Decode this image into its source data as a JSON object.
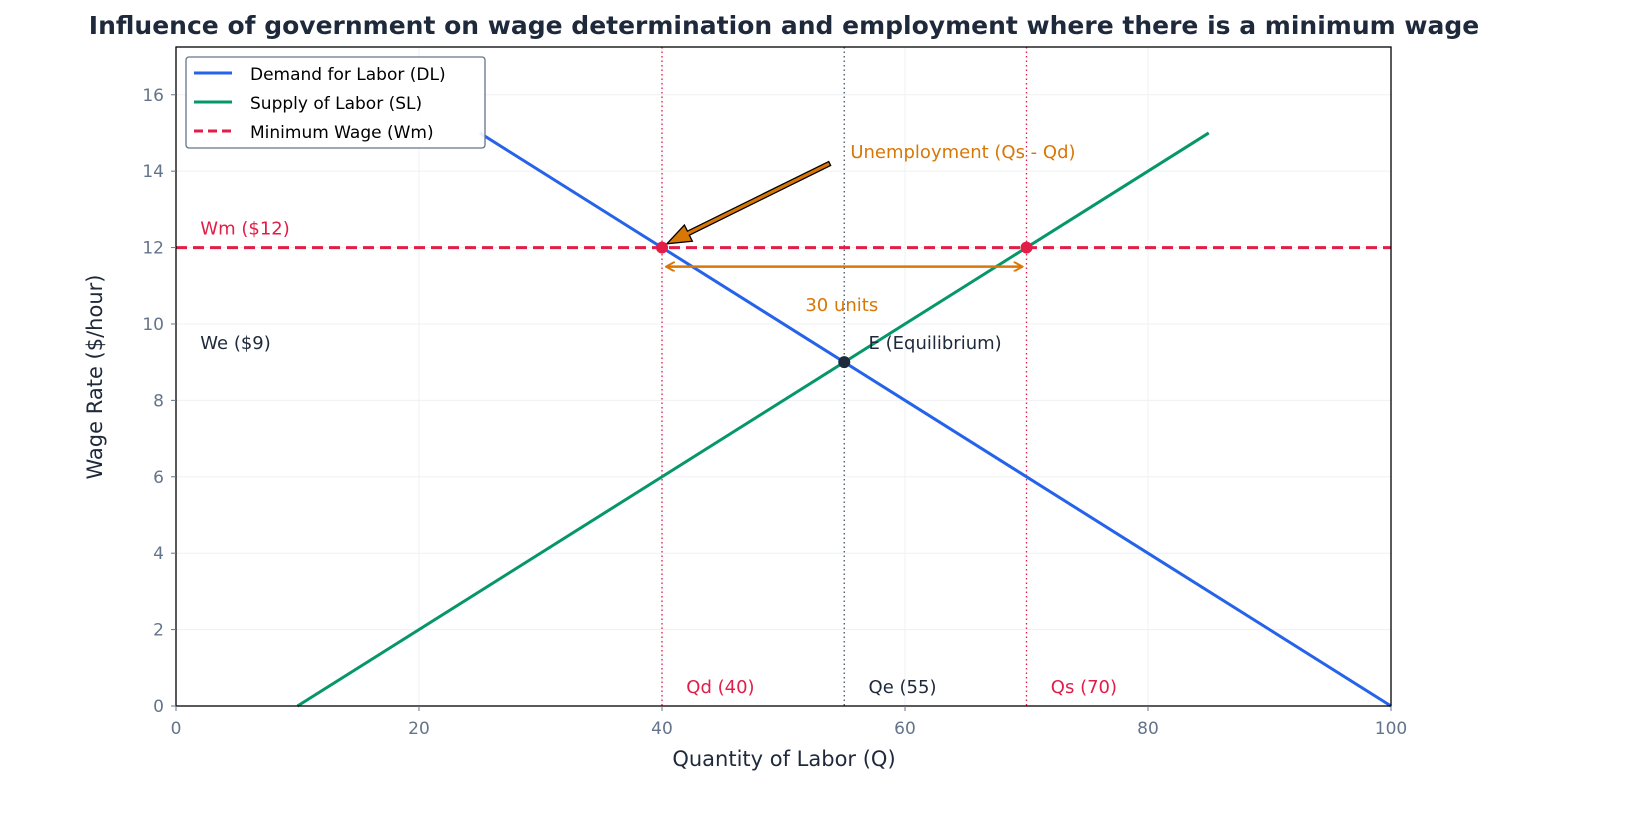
{
  "chart_data": {
    "type": "line",
    "title": "Influence of government on wage determination and employment where there is a minimum wage",
    "xlabel": "Quantity of Labor (Q)",
    "ylabel": "Wage Rate ($/hour)",
    "xlim": [
      0,
      100
    ],
    "ylim": [
      0,
      17.25
    ],
    "xticks": [
      0,
      20,
      40,
      60,
      80,
      100
    ],
    "yticks": [
      0,
      2,
      4,
      6,
      8,
      10,
      12,
      14,
      16
    ],
    "grid": true,
    "legend_position": "top-left",
    "series": [
      {
        "name": "Demand for Labor (DL)",
        "color": "#2563eb",
        "style": "solid",
        "x": [
          25,
          100
        ],
        "y": [
          15,
          0
        ]
      },
      {
        "name": "Supply of Labor (SL)",
        "color": "#059669",
        "style": "solid",
        "x": [
          10,
          85
        ],
        "y": [
          0,
          15
        ]
      },
      {
        "name": "Minimum Wage (Wm)",
        "color": "#e11d48",
        "style": "dashed",
        "x": [
          0,
          100
        ],
        "y": [
          12,
          12
        ]
      }
    ],
    "vlines": [
      {
        "x": 40,
        "color": "#e11d48"
      },
      {
        "x": 55,
        "color": "#475569"
      },
      {
        "x": 70,
        "color": "#e11d48"
      }
    ],
    "points": [
      {
        "x": 40,
        "y": 12,
        "color": "#e11d48"
      },
      {
        "x": 70,
        "y": 12,
        "color": "#e11d48"
      },
      {
        "x": 55,
        "y": 9,
        "color": "#1e293b"
      }
    ],
    "annotations": [
      {
        "text": "Wm ($12)",
        "x": 2,
        "y": 12.5,
        "color": "#e11d48"
      },
      {
        "text": "We ($9)",
        "x": 2,
        "y": 9.5,
        "color": "#1e293b"
      },
      {
        "text": "E (Equilibrium)",
        "x": 57,
        "y": 9.5,
        "color": "#1e293b"
      },
      {
        "text": "Unemployment (Qs - Qd)",
        "x": 55.5,
        "y": 14.5,
        "color": "#d97706"
      },
      {
        "text": "30 units",
        "x": 51.8,
        "y": 10.5,
        "color": "#d97706"
      },
      {
        "text": "Qd (40)",
        "x": 42,
        "y": 0.5,
        "color": "#e11d48"
      },
      {
        "text": "Qe (55)",
        "x": 57,
        "y": 0.5,
        "color": "#1e293b"
      },
      {
        "text": "Qs (70)",
        "x": 72,
        "y": 0.5,
        "color": "#e11d48"
      }
    ],
    "arrow": {
      "from": [
        53.8,
        14.2
      ],
      "to": [
        40.4,
        12.1
      ],
      "color": "#d97706"
    },
    "double_arrow": {
      "from": [
        40,
        11.5
      ],
      "to": [
        70,
        11.5
      ],
      "color": "#d97706"
    }
  }
}
